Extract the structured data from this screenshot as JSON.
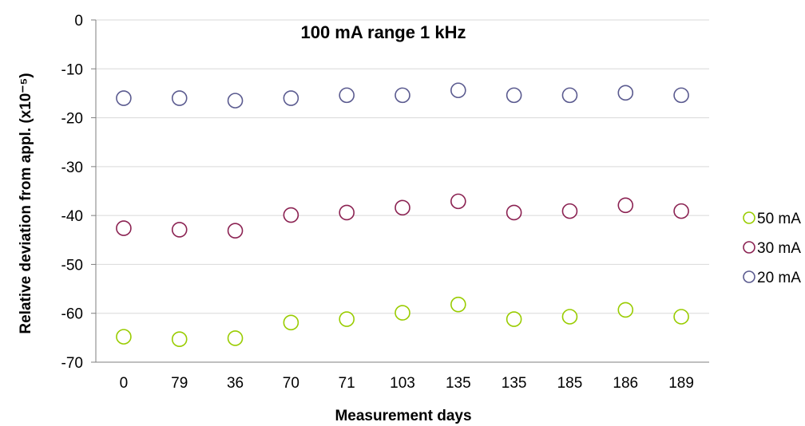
{
  "chart_data": {
    "type": "scatter",
    "title": "100 mA range 1 kHz",
    "xlabel": "Measurement days",
    "ylabel": "Relative deviation from appl.  (x10⁻⁵)",
    "categories": [
      "0",
      "79",
      "36",
      "70",
      "71",
      "103",
      "135",
      "135",
      "185",
      "186",
      "189"
    ],
    "ylim": [
      -70,
      0
    ],
    "yticks": [
      0,
      -10,
      -20,
      -30,
      -40,
      -50,
      -60,
      -70
    ],
    "grid": true,
    "legend_position": "right",
    "series": [
      {
        "name": "50 mA",
        "color": "#99cc00",
        "values": [
          -64.8,
          -65.3,
          -65.1,
          -61.9,
          -61.2,
          -59.9,
          -58.2,
          -61.2,
          -60.7,
          -59.3,
          -60.7
        ]
      },
      {
        "name": "30 mA",
        "color": "#8b2252",
        "values": [
          -42.6,
          -42.9,
          -43.1,
          -39.9,
          -39.4,
          -38.4,
          -37.1,
          -39.4,
          -39.1,
          -37.9,
          -39.1
        ]
      },
      {
        "name": "20 mA",
        "color": "#5a5a8f",
        "values": [
          -16.0,
          -16.0,
          -16.5,
          -16.0,
          -15.4,
          -15.4,
          -14.4,
          -15.4,
          -15.4,
          -14.9,
          -15.4
        ]
      }
    ],
    "legend_order": [
      0,
      1,
      2
    ]
  }
}
